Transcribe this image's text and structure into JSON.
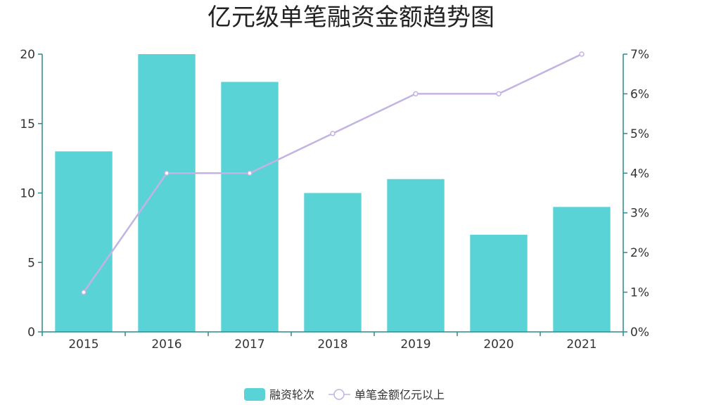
{
  "chart_data": {
    "type": "bar",
    "title": "亿元级单笔融资金额趋势图",
    "categories": [
      "2015",
      "2016",
      "2017",
      "2018",
      "2019",
      "2020",
      "2021"
    ],
    "series": [
      {
        "name": "融资轮次",
        "type": "bar",
        "axis": "left",
        "values": [
          13,
          20,
          18,
          10,
          11,
          7,
          9
        ],
        "color": "#5ad3d7"
      },
      {
        "name": "单笔金额亿元以上",
        "type": "line",
        "axis": "right",
        "values": [
          1,
          4,
          4,
          5,
          6,
          6,
          7
        ],
        "unit": "%",
        "color": "#c3b3e3"
      }
    ],
    "y_left": {
      "min": 0,
      "max": 20,
      "ticks": [
        "0",
        "5",
        "10",
        "15",
        "20"
      ]
    },
    "y_right": {
      "min": 0,
      "max": 7,
      "ticks": [
        "0%",
        "1%",
        "2%",
        "3%",
        "4%",
        "5%",
        "6%",
        "7%"
      ]
    },
    "axis_color": "#2f8a8a",
    "grid": false,
    "legend_position": "bottom-center"
  }
}
